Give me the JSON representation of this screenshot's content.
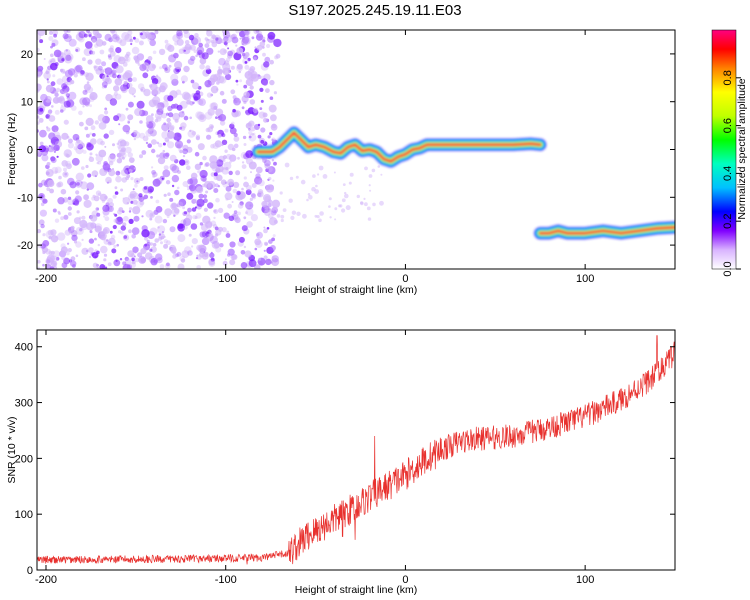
{
  "title": "S197.2025.245.19.11.E03",
  "chart_data": [
    {
      "type": "heatmap",
      "name": "spectrogram",
      "xlabel": "Height of straight line (km)",
      "ylabel": "Frequency (Hz)",
      "xlim": [
        -205,
        150
      ],
      "ylim": [
        -25,
        25
      ],
      "xticks": [
        -200,
        -100,
        0,
        100
      ],
      "yticks": [
        -20,
        -10,
        0,
        10,
        20
      ],
      "noise_region_x": [
        -205,
        -72
      ],
      "ridges": [
        {
          "name": "main-signal",
          "points": [
            [
              -82,
              -0.5
            ],
            [
              -74,
              -0.5
            ],
            [
              -70,
              0.5
            ],
            [
              -66,
              2
            ],
            [
              -62,
              3.5
            ],
            [
              -58,
              2
            ],
            [
              -54,
              0.5
            ],
            [
              -50,
              1
            ],
            [
              -45,
              0.5
            ],
            [
              -40,
              -0.5
            ],
            [
              -36,
              -0.8
            ],
            [
              -32,
              0.5
            ],
            [
              -28,
              1
            ],
            [
              -24,
              -0.3
            ],
            [
              -20,
              0
            ],
            [
              -16,
              -0.5
            ],
            [
              -12,
              -2
            ],
            [
              -8,
              -2.5
            ],
            [
              -4,
              -1.5
            ],
            [
              0,
              -1
            ],
            [
              4,
              0
            ],
            [
              8,
              0.3
            ],
            [
              12,
              1
            ],
            [
              20,
              1
            ],
            [
              30,
              1
            ],
            [
              40,
              1
            ],
            [
              50,
              1
            ],
            [
              60,
              1
            ],
            [
              70,
              1.2
            ],
            [
              75,
              1
            ]
          ]
        },
        {
          "name": "secondary-signal",
          "points": [
            [
              75,
              -17.5
            ],
            [
              80,
              -17.5
            ],
            [
              85,
              -17
            ],
            [
              90,
              -17.5
            ],
            [
              100,
              -17.5
            ],
            [
              110,
              -17
            ],
            [
              120,
              -17.5
            ],
            [
              130,
              -17
            ],
            [
              140,
              -16.5
            ],
            [
              150,
              -16.3
            ]
          ]
        }
      ]
    },
    {
      "type": "colorbar",
      "name": "amplitude-colorbar",
      "label": "Normalized spectral amplitude",
      "range": [
        0,
        1
      ],
      "ticks": [
        "0.0",
        "0.2",
        "0.4",
        "0.6",
        "0.8"
      ]
    },
    {
      "type": "line",
      "name": "snr-plot",
      "xlabel": "Height of straight line (km)",
      "ylabel": "SNR (10 * v/v)",
      "xlim": [
        -205,
        150
      ],
      "ylim": [
        0,
        430
      ],
      "xticks": [
        -200,
        -100,
        0,
        100
      ],
      "yticks": [
        0,
        100,
        200,
        300,
        400
      ],
      "color": "#e8312e",
      "trend": [
        [
          -205,
          18
        ],
        [
          -120,
          20
        ],
        [
          -80,
          22
        ],
        [
          -65,
          30
        ],
        [
          -55,
          60
        ],
        [
          -40,
          90
        ],
        [
          -30,
          110
        ],
        [
          -20,
          130
        ],
        [
          -10,
          150
        ],
        [
          0,
          170
        ],
        [
          10,
          195
        ],
        [
          20,
          215
        ],
        [
          30,
          230
        ],
        [
          40,
          235
        ],
        [
          60,
          240
        ],
        [
          80,
          255
        ],
        [
          100,
          275
        ],
        [
          120,
          305
        ],
        [
          140,
          350
        ],
        [
          150,
          390
        ]
      ],
      "spikes": [
        [
          -88,
          10
        ],
        [
          -60,
          45
        ],
        [
          -35,
          60
        ],
        [
          -29,
          130
        ],
        [
          -20,
          150
        ],
        [
          -17,
          240
        ],
        [
          -28,
          -20
        ],
        [
          140,
          420
        ]
      ]
    }
  ]
}
